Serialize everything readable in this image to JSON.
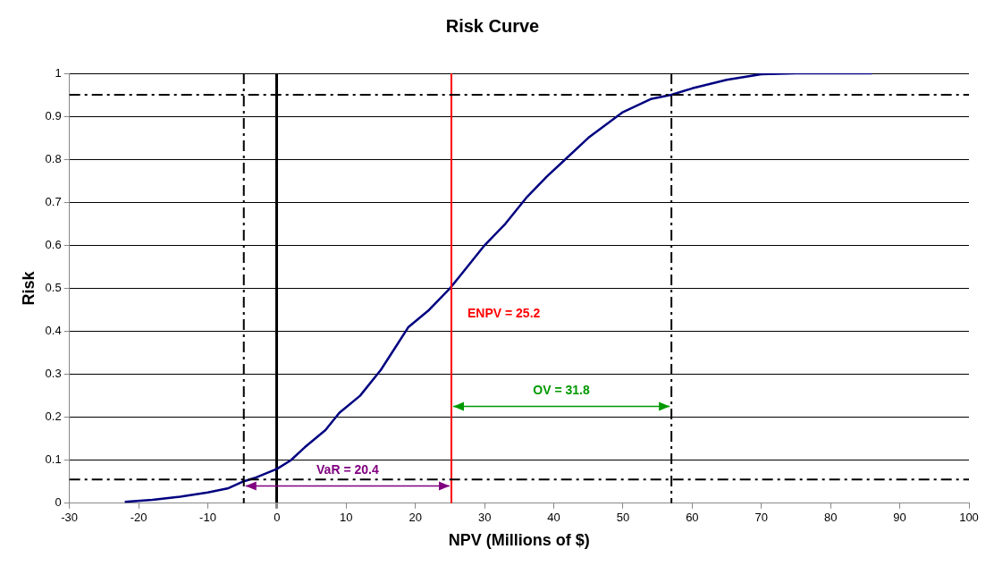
{
  "chart_data": {
    "type": "line",
    "title": "Risk Curve",
    "xlabel": "NPV (Millions of $)",
    "ylabel": "Risk",
    "x": [
      -22,
      -18,
      -14,
      -10,
      -7,
      -5,
      -3,
      0,
      2,
      4,
      7,
      9,
      12,
      15,
      17,
      19,
      22,
      25,
      27,
      30,
      33,
      36,
      39,
      41,
      45,
      50,
      54,
      57,
      60,
      65,
      70,
      75,
      86
    ],
    "series": [
      {
        "color": "#000080",
        "values": [
          0.003,
          0.008,
          0.015,
          0.025,
          0.035,
          0.05,
          0.06,
          0.08,
          0.1,
          0.13,
          0.17,
          0.21,
          0.25,
          0.31,
          0.36,
          0.41,
          0.45,
          0.5,
          0.54,
          0.6,
          0.65,
          0.71,
          0.76,
          0.79,
          0.85,
          0.91,
          0.94,
          0.95,
          0.965,
          0.985,
          0.998,
          1,
          1
        ]
      }
    ],
    "xlim": [
      -30,
      100
    ],
    "xticks": [
      -30,
      -20,
      -10,
      0,
      10,
      20,
      30,
      40,
      50,
      60,
      70,
      80,
      90,
      100
    ],
    "ylim": [
      0,
      1
    ],
    "yticks": [
      0,
      0.1,
      0.2,
      0.3,
      0.4,
      0.5,
      0.6,
      0.7,
      0.8,
      0.9,
      1
    ],
    "grid": "y",
    "legend": false,
    "marker": "none",
    "line_style": "solid",
    "ref_lines": [
      {
        "axis": "x",
        "value": 25.2,
        "label": "ENPV = 25.2",
        "color": "#ff0000",
        "line_style": "solid"
      },
      {
        "axis": "x",
        "value": -4.8,
        "color": "#000000",
        "line_style": "dashed"
      },
      {
        "axis": "x",
        "value": 57,
        "color": "#000000",
        "line_style": "dashed"
      },
      {
        "axis": "y",
        "value": 0.055,
        "color": "#000000",
        "line_style": "dashed"
      },
      {
        "axis": "y",
        "value": 0.95,
        "color": "#000000",
        "line_style": "dashed"
      }
    ],
    "annotations": [
      "VaR = 20.4",
      "OV = 31.8"
    ]
  }
}
